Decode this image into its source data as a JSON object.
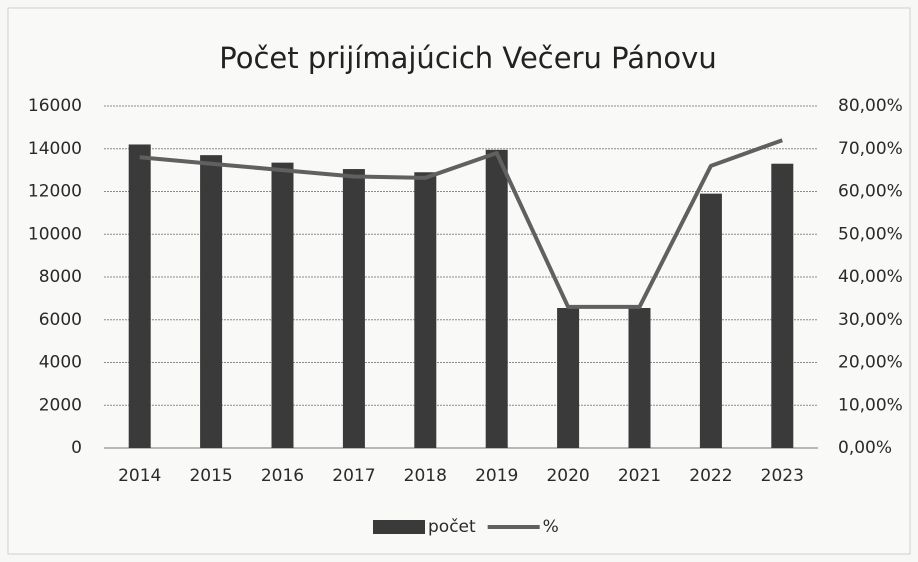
{
  "chart_data": {
    "type": "bar",
    "title": "Počet prijímajúcich Večeru Pánovu",
    "categories": [
      "2014",
      "2015",
      "2016",
      "2017",
      "2018",
      "2019",
      "2020",
      "2021",
      "2022",
      "2023"
    ],
    "series": [
      {
        "name": "počet",
        "type": "bar",
        "color": "#3a3a3a",
        "values": [
          14200,
          13700,
          13350,
          13050,
          12900,
          13950,
          6550,
          6550,
          11900,
          13300
        ]
      },
      {
        "name": "%",
        "type": "line",
        "axis": "y2",
        "color": "#606060",
        "values": [
          68,
          66.5,
          65,
          63.5,
          63.2,
          69,
          33,
          33,
          66,
          72
        ]
      }
    ],
    "ylim": [
      0,
      16000
    ],
    "yticks": [
      0,
      2000,
      4000,
      6000,
      8000,
      10000,
      12000,
      14000,
      16000
    ],
    "y2lim": [
      0,
      80
    ],
    "y2ticks": [
      {
        "value": 0,
        "label": "0,00%"
      },
      {
        "value": 10,
        "label": "10,00%"
      },
      {
        "value": 20,
        "label": "20,00%"
      },
      {
        "value": 30,
        "label": "30,00%"
      },
      {
        "value": 40,
        "label": "40,00%"
      },
      {
        "value": 50,
        "label": "50,00%"
      },
      {
        "value": 60,
        "label": "60,00%"
      },
      {
        "value": 70,
        "label": "70,00%"
      },
      {
        "value": 80,
        "label": "80,00%"
      }
    ],
    "grid": true,
    "legend": "bottom"
  }
}
